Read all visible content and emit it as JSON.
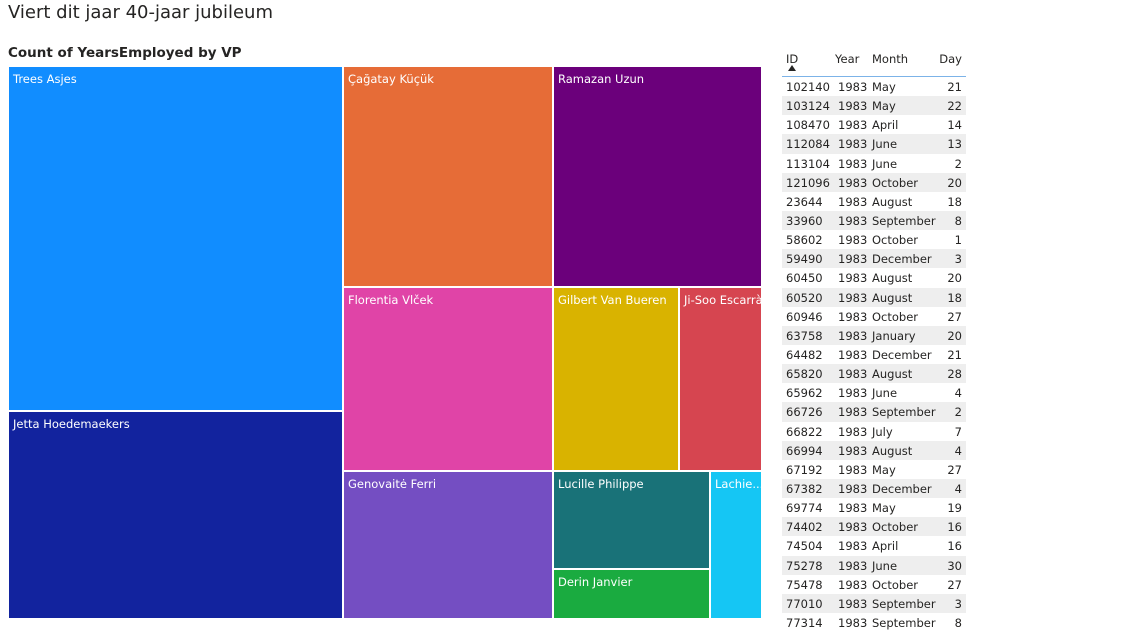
{
  "page": {
    "title": "Viert dit jaar 40-jaar jubileum"
  },
  "treemap": {
    "title": "Count of YearsEmployed by VP",
    "tiles": [
      {
        "label": "Trees Asjes",
        "color": "#118dff"
      },
      {
        "label": "Jetta Hoedemaekers",
        "color": "#12239e"
      },
      {
        "label": "Çağatay Küçük",
        "color": "#e66c37"
      },
      {
        "label": "Ramazan Uzun",
        "color": "#6b007b"
      },
      {
        "label": "Florentia Vlček",
        "color": "#e044a7"
      },
      {
        "label": "Gilbert Van Bueren",
        "color": "#d9b300"
      },
      {
        "label": "Ji-Soo Escarrà",
        "color": "#d64550"
      },
      {
        "label": "Genovaitė Ferri",
        "color": "#744ec2"
      },
      {
        "label": "Lucille Philippe",
        "color": "#197278"
      },
      {
        "label": "Lachie...",
        "color": "#15c6f4"
      },
      {
        "label": "Derin Janvier",
        "color": "#1aab40"
      }
    ]
  },
  "table": {
    "columns": [
      "ID",
      "Year",
      "Month",
      "Day"
    ],
    "rows": [
      [
        "102140",
        "1983",
        "May",
        "21"
      ],
      [
        "103124",
        "1983",
        "May",
        "22"
      ],
      [
        "108470",
        "1983",
        "April",
        "14"
      ],
      [
        "112084",
        "1983",
        "June",
        "13"
      ],
      [
        "113104",
        "1983",
        "June",
        "2"
      ],
      [
        "121096",
        "1983",
        "October",
        "20"
      ],
      [
        "23644",
        "1983",
        "August",
        "18"
      ],
      [
        "33960",
        "1983",
        "September",
        "8"
      ],
      [
        "58602",
        "1983",
        "October",
        "1"
      ],
      [
        "59490",
        "1983",
        "December",
        "3"
      ],
      [
        "60450",
        "1983",
        "August",
        "20"
      ],
      [
        "60520",
        "1983",
        "August",
        "18"
      ],
      [
        "60946",
        "1983",
        "October",
        "27"
      ],
      [
        "63758",
        "1983",
        "January",
        "20"
      ],
      [
        "64482",
        "1983",
        "December",
        "21"
      ],
      [
        "65820",
        "1983",
        "August",
        "28"
      ],
      [
        "65962",
        "1983",
        "June",
        "4"
      ],
      [
        "66726",
        "1983",
        "September",
        "2"
      ],
      [
        "66822",
        "1983",
        "July",
        "7"
      ],
      [
        "66994",
        "1983",
        "August",
        "4"
      ],
      [
        "67192",
        "1983",
        "May",
        "27"
      ],
      [
        "67382",
        "1983",
        "December",
        "4"
      ],
      [
        "69774",
        "1983",
        "May",
        "19"
      ],
      [
        "74402",
        "1983",
        "October",
        "16"
      ],
      [
        "74504",
        "1983",
        "April",
        "16"
      ],
      [
        "75278",
        "1983",
        "June",
        "30"
      ],
      [
        "75478",
        "1983",
        "October",
        "27"
      ],
      [
        "77010",
        "1983",
        "September",
        "3"
      ],
      [
        "77314",
        "1983",
        "September",
        "8"
      ]
    ]
  }
}
